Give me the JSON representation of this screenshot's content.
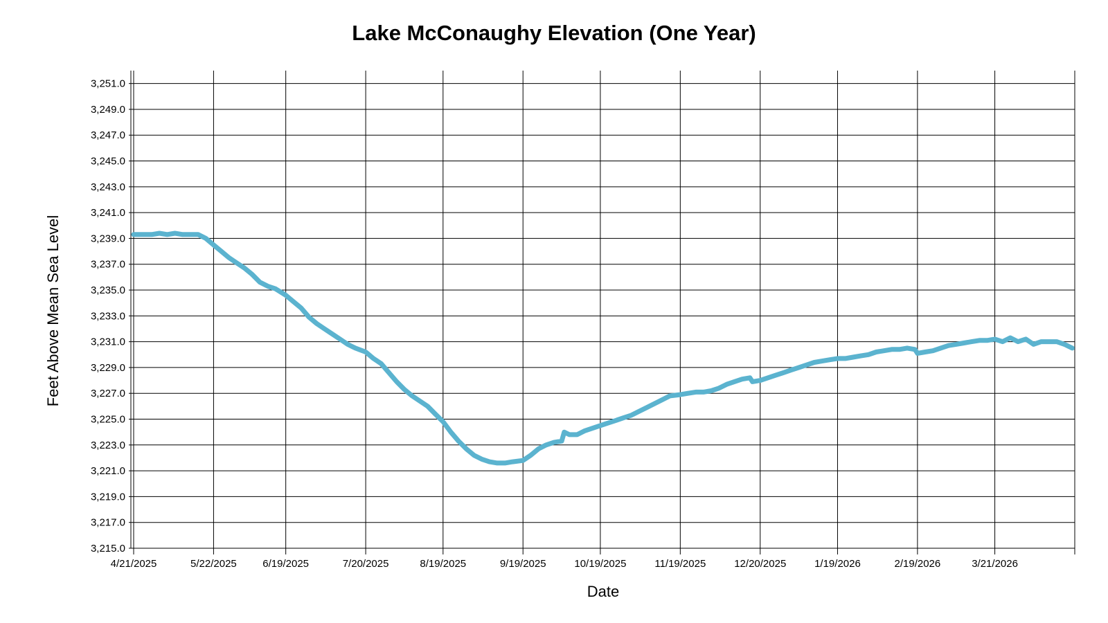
{
  "chart_data": {
    "type": "line",
    "title": "Lake McConaughy Elevation (One Year)",
    "xlabel": "Date",
    "ylabel": "Feet Above Mean Sea Level",
    "x_tick_labels": [
      "4/21/2025",
      "5/22/2025",
      "6/19/2025",
      "7/20/2025",
      "8/19/2025",
      "9/19/2025",
      "10/19/2025",
      "11/19/2025",
      "12/20/2025",
      "1/19/2026",
      "2/19/2026",
      "3/21/2026"
    ],
    "x_range": [
      "2025-04-21",
      "2026-04-21"
    ],
    "y_tick_labels": [
      "3,215.0",
      "3,217.0",
      "3,219.0",
      "3,221.0",
      "3,223.0",
      "3,225.0",
      "3,227.0",
      "3,229.0",
      "3,231.0",
      "3,233.0",
      "3,235.0",
      "3,237.0",
      "3,239.0",
      "3,241.0",
      "3,243.0",
      "3,245.0",
      "3,247.0",
      "3,249.0",
      "3,251.0"
    ],
    "ylim": [
      3215.0,
      3252.0
    ],
    "grid": true,
    "line_color": "#5BB3CF",
    "series": [
      {
        "x": [
          "2025-04-21",
          "2025-04-25",
          "2025-04-28",
          "2025-05-01",
          "2025-05-04",
          "2025-05-07",
          "2025-05-10",
          "2025-05-13",
          "2025-05-16",
          "2025-05-19",
          "2025-05-22",
          "2025-05-25",
          "2025-05-28",
          "2025-05-31",
          "2025-06-03",
          "2025-06-06",
          "2025-06-09",
          "2025-06-12",
          "2025-06-15",
          "2025-06-19",
          "2025-06-22",
          "2025-06-25",
          "2025-06-28",
          "2025-07-01",
          "2025-07-04",
          "2025-07-07",
          "2025-07-10",
          "2025-07-13",
          "2025-07-16",
          "2025-07-20",
          "2025-07-23",
          "2025-07-26",
          "2025-07-29",
          "2025-08-01",
          "2025-08-04",
          "2025-08-07",
          "2025-08-10",
          "2025-08-13",
          "2025-08-16",
          "2025-08-19",
          "2025-08-22",
          "2025-08-25",
          "2025-08-28",
          "2025-08-31",
          "2025-09-03",
          "2025-09-06",
          "2025-09-09",
          "2025-09-12",
          "2025-09-15",
          "2025-09-19",
          "2025-09-22",
          "2025-09-25",
          "2025-09-28",
          "2025-10-01",
          "2025-10-04",
          "2025-10-05",
          "2025-10-07",
          "2025-10-10",
          "2025-10-13",
          "2025-10-16",
          "2025-10-19",
          "2025-10-22",
          "2025-10-25",
          "2025-10-28",
          "2025-10-31",
          "2025-11-03",
          "2025-11-06",
          "2025-11-09",
          "2025-11-12",
          "2025-11-15",
          "2025-11-19",
          "2025-11-22",
          "2025-11-25",
          "2025-11-28",
          "2025-12-01",
          "2025-12-04",
          "2025-12-07",
          "2025-12-10",
          "2025-12-13",
          "2025-12-16",
          "2025-12-17",
          "2025-12-20",
          "2025-12-23",
          "2025-12-26",
          "2025-12-29",
          "2026-01-01",
          "2026-01-04",
          "2026-01-07",
          "2026-01-10",
          "2026-01-13",
          "2026-01-16",
          "2026-01-19",
          "2026-01-22",
          "2026-01-25",
          "2026-01-28",
          "2026-01-31",
          "2026-02-03",
          "2026-02-06",
          "2026-02-09",
          "2026-02-12",
          "2026-02-15",
          "2026-02-18",
          "2026-02-19",
          "2026-02-22",
          "2026-02-25",
          "2026-02-28",
          "2026-03-03",
          "2026-03-06",
          "2026-03-09",
          "2026-03-12",
          "2026-03-15",
          "2026-03-18",
          "2026-03-21",
          "2026-03-24",
          "2026-03-27",
          "2026-03-30",
          "2026-04-02",
          "2026-04-05",
          "2026-04-08",
          "2026-04-11",
          "2026-04-14",
          "2026-04-17",
          "2026-04-20"
        ],
        "y": [
          3239.3,
          3239.3,
          3239.3,
          3239.4,
          3239.3,
          3239.4,
          3239.3,
          3239.3,
          3239.3,
          3239.0,
          3238.5,
          3238.0,
          3237.5,
          3237.1,
          3236.7,
          3236.2,
          3235.6,
          3235.3,
          3235.1,
          3234.6,
          3234.1,
          3233.6,
          3232.9,
          3232.4,
          3232.0,
          3231.6,
          3231.2,
          3230.8,
          3230.5,
          3230.2,
          3229.7,
          3229.3,
          3228.6,
          3227.9,
          3227.3,
          3226.8,
          3226.4,
          3226.0,
          3225.4,
          3224.8,
          3224.0,
          3223.3,
          3222.7,
          3222.2,
          3221.9,
          3221.7,
          3221.6,
          3221.6,
          3221.7,
          3221.8,
          3222.2,
          3222.7,
          3223.0,
          3223.2,
          3223.3,
          3224.0,
          3223.8,
          3223.8,
          3224.1,
          3224.3,
          3224.5,
          3224.7,
          3224.9,
          3225.1,
          3225.3,
          3225.6,
          3225.9,
          3226.2,
          3226.5,
          3226.8,
          3226.9,
          3227.0,
          3227.1,
          3227.1,
          3227.2,
          3227.4,
          3227.7,
          3227.9,
          3228.1,
          3228.2,
          3227.9,
          3228.0,
          3228.2,
          3228.4,
          3228.6,
          3228.8,
          3229.0,
          3229.2,
          3229.4,
          3229.5,
          3229.6,
          3229.7,
          3229.7,
          3229.8,
          3229.9,
          3230.0,
          3230.2,
          3230.3,
          3230.4,
          3230.4,
          3230.5,
          3230.4,
          3230.1,
          3230.2,
          3230.3,
          3230.5,
          3230.7,
          3230.8,
          3230.9,
          3231.0,
          3231.1,
          3231.1,
          3231.2,
          3231.0,
          3231.3,
          3231.0,
          3231.2,
          3230.8,
          3231.0,
          3231.0,
          3231.0,
          3230.8,
          3230.5
        ]
      }
    ]
  }
}
